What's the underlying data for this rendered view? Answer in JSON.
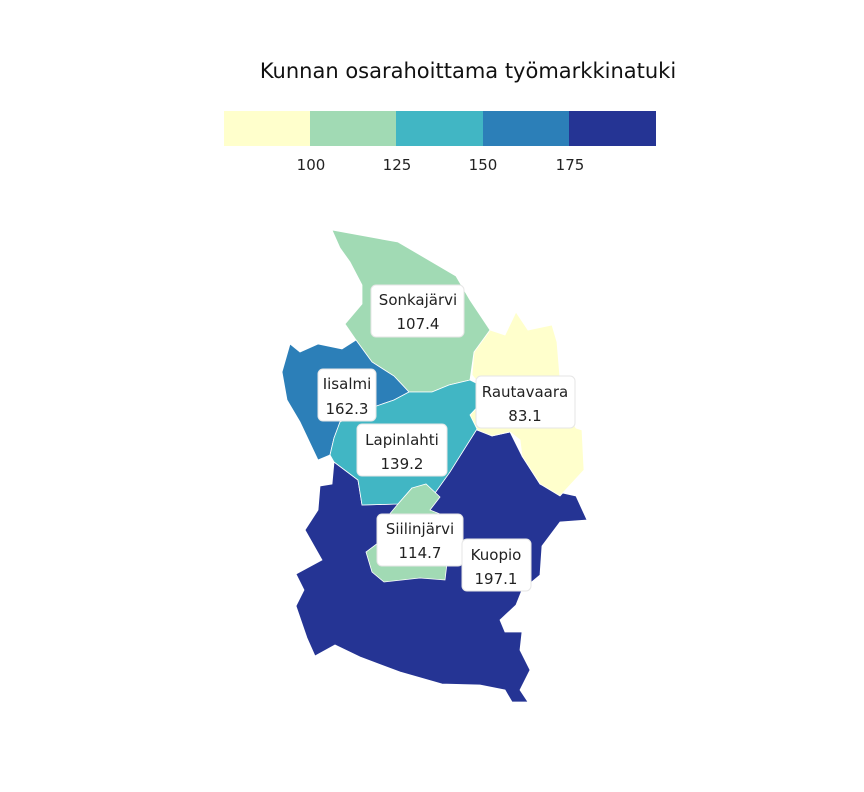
{
  "title": "Kunnan osarahoittama työmarkkinatuki",
  "legend": {
    "colors": [
      "#ffffcc",
      "#a1dab4",
      "#41b6c4",
      "#2c7fb8",
      "#253494"
    ],
    "thresholds": [
      "100",
      "125",
      "150",
      "175"
    ]
  },
  "municipalities": [
    {
      "key": "sonkajarvi",
      "name": "Sonkajärvi",
      "value": "107.4",
      "color": "#a1dab4"
    },
    {
      "key": "rautavaara",
      "name": "Rautavaara",
      "value": "83.1",
      "color": "#ffffcc"
    },
    {
      "key": "iisalmi",
      "name": "Iisalmi",
      "value": "162.3",
      "color": "#2c7fb8"
    },
    {
      "key": "lapinlahti",
      "name": "Lapinlahti",
      "value": "139.2",
      "color": "#41b6c4"
    },
    {
      "key": "siilinjarvi",
      "name": "Siilinjärvi",
      "value": "114.7",
      "color": "#a1dab4"
    },
    {
      "key": "kuopio",
      "name": "Kuopio",
      "value": "197.1",
      "color": "#253494"
    }
  ]
}
